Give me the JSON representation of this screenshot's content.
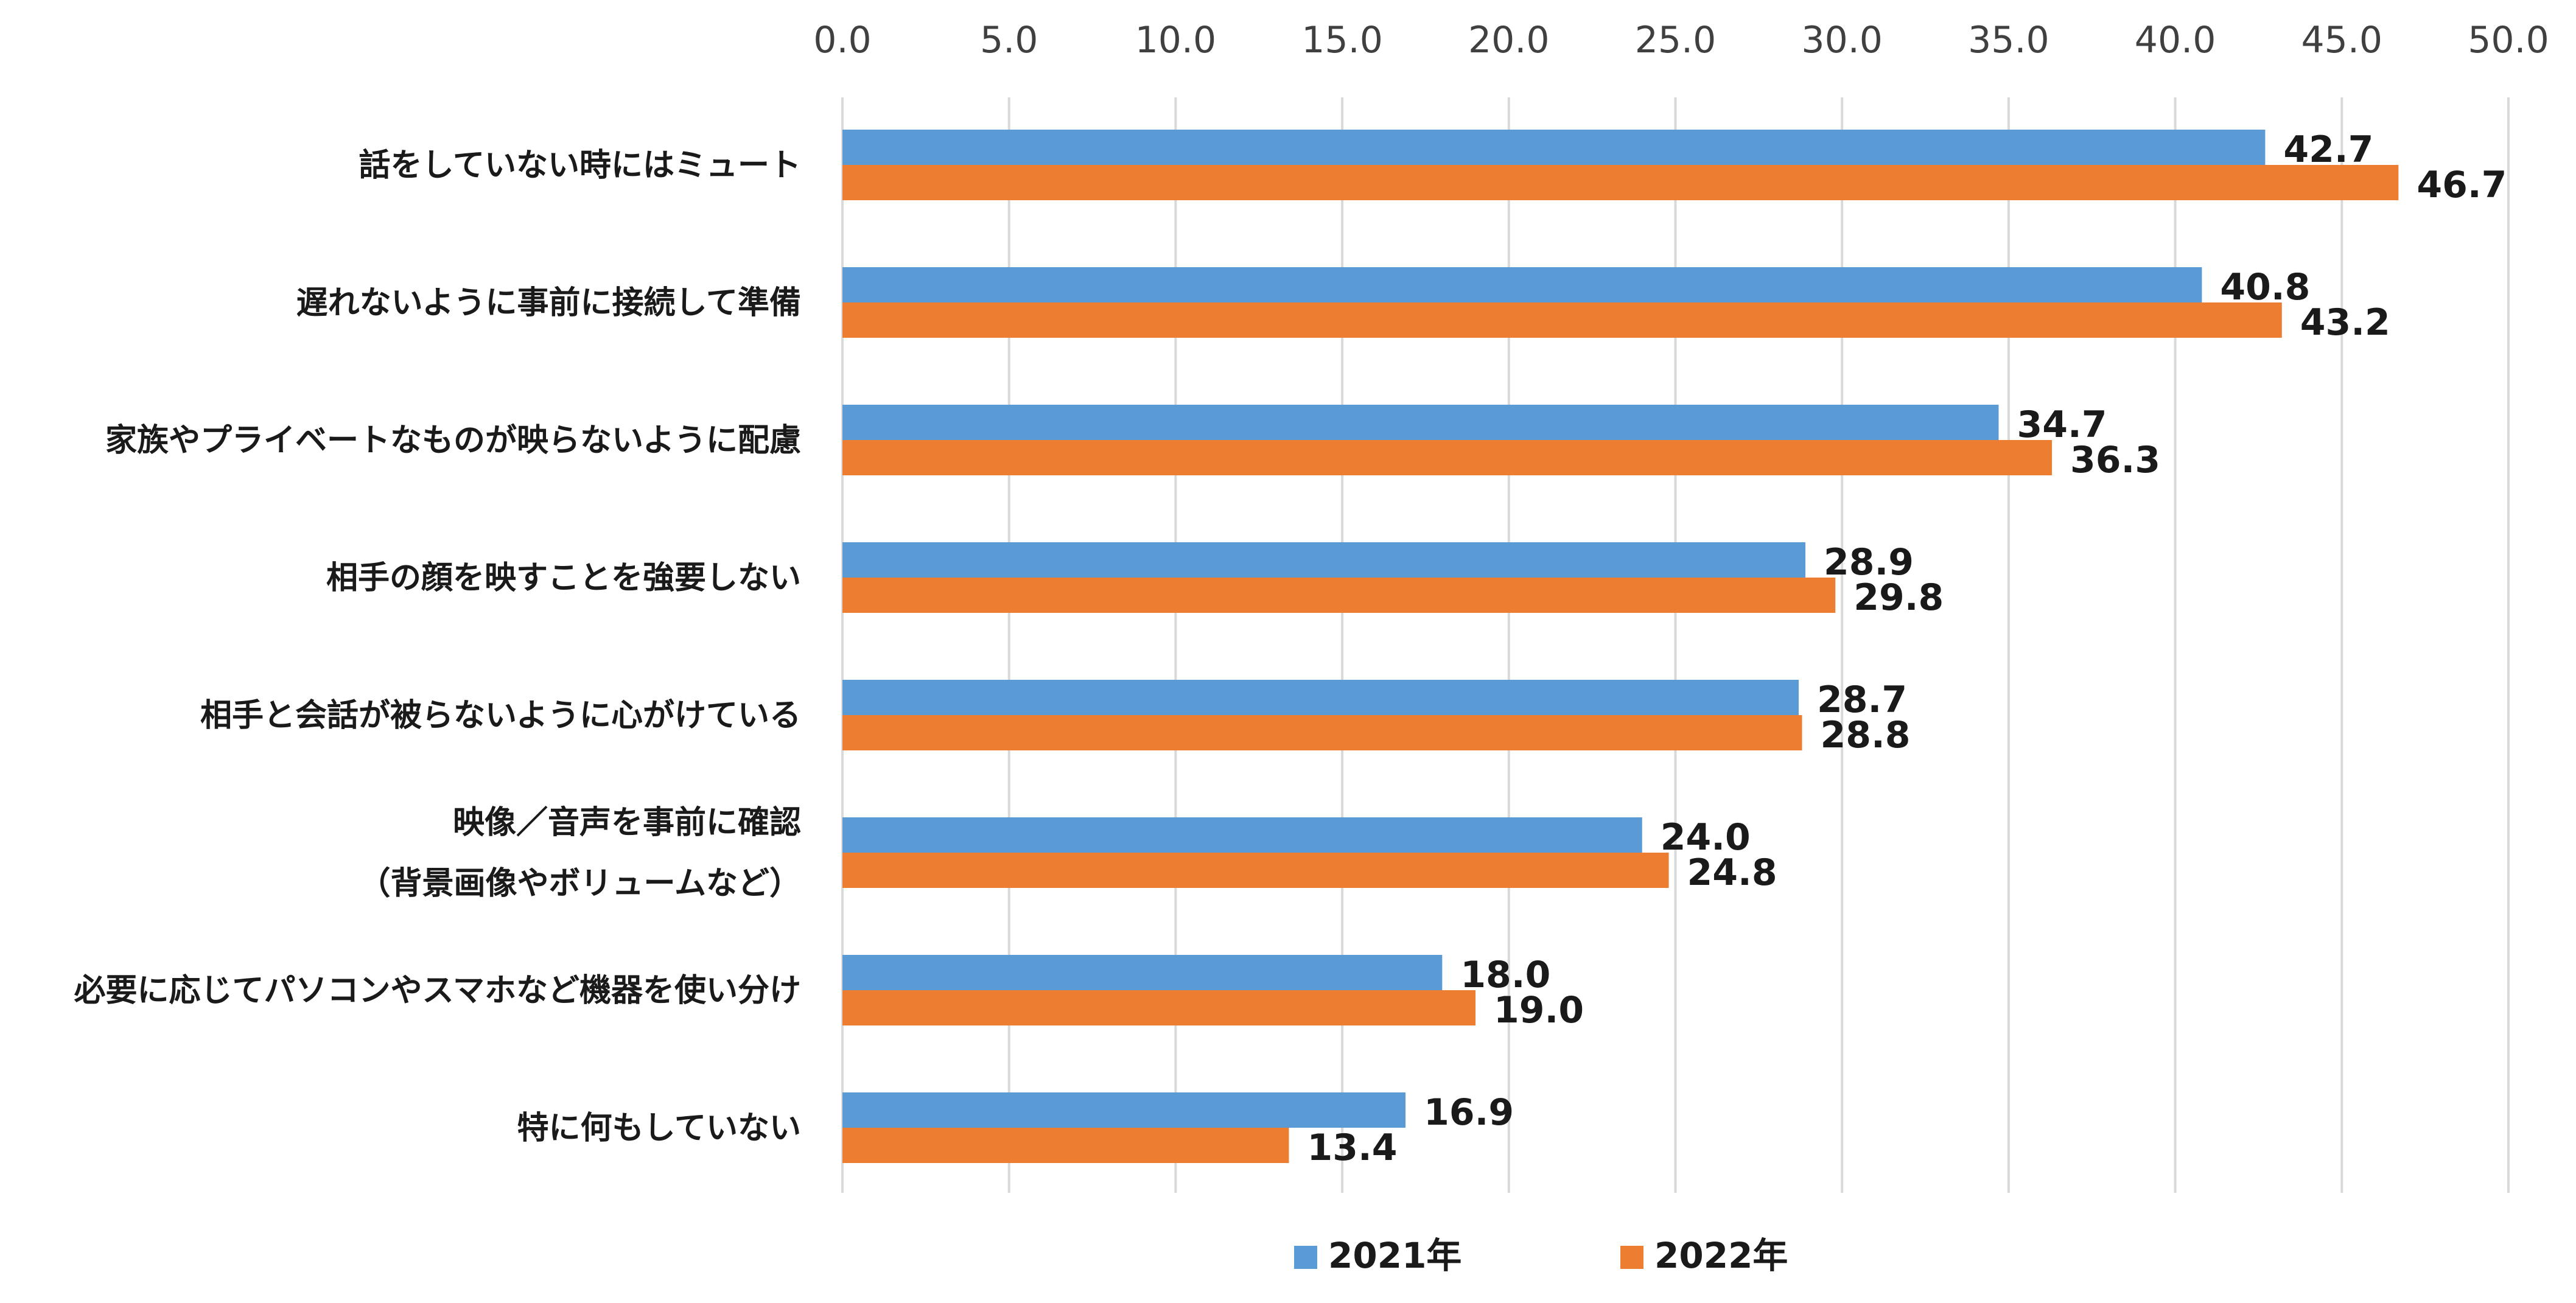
{
  "chart_data": {
    "type": "bar",
    "orientation": "horizontal",
    "categories": [
      [
        "話をしていない時にはミュート"
      ],
      [
        "遅れないように事前に接続して準備"
      ],
      [
        "家族やプライベートなものが映らないように配慮"
      ],
      [
        "相手の顔を映すことを強要しない"
      ],
      [
        "相手と会話が被らないように心がけている"
      ],
      [
        "映像／音声を事前に確認",
        "（背景画像やボリュームなど）"
      ],
      [
        "必要に応じてパソコンやスマホなど機器を使い分け"
      ],
      [
        "特に何もしていない"
      ]
    ],
    "series": [
      {
        "name": "2021年",
        "color": "#5B9BD5",
        "values": [
          42.7,
          40.8,
          34.7,
          28.9,
          28.7,
          24.0,
          18.0,
          16.9
        ],
        "labels": [
          "42.7",
          "40.8",
          "34.7",
          "28.9",
          "28.7",
          "24.0",
          "18.0",
          "16.9"
        ]
      },
      {
        "name": "2022年",
        "color": "#ED7D31",
        "values": [
          46.7,
          43.2,
          36.3,
          29.8,
          28.8,
          24.8,
          19.0,
          13.4
        ],
        "labels": [
          "46.7",
          "43.2",
          "36.3",
          "29.8",
          "28.8",
          "24.8",
          "19.0",
          "13.4"
        ]
      }
    ],
    "xlim": [
      0,
      50
    ],
    "xticks": [
      "0.0",
      "5.0",
      "10.0",
      "15.0",
      "20.0",
      "25.0",
      "30.0",
      "35.0",
      "40.0",
      "45.0",
      "50.0"
    ],
    "x_axis_position": "top",
    "grid": true,
    "gridline_color": "#D9D9D9",
    "legend_position": "bottom"
  }
}
